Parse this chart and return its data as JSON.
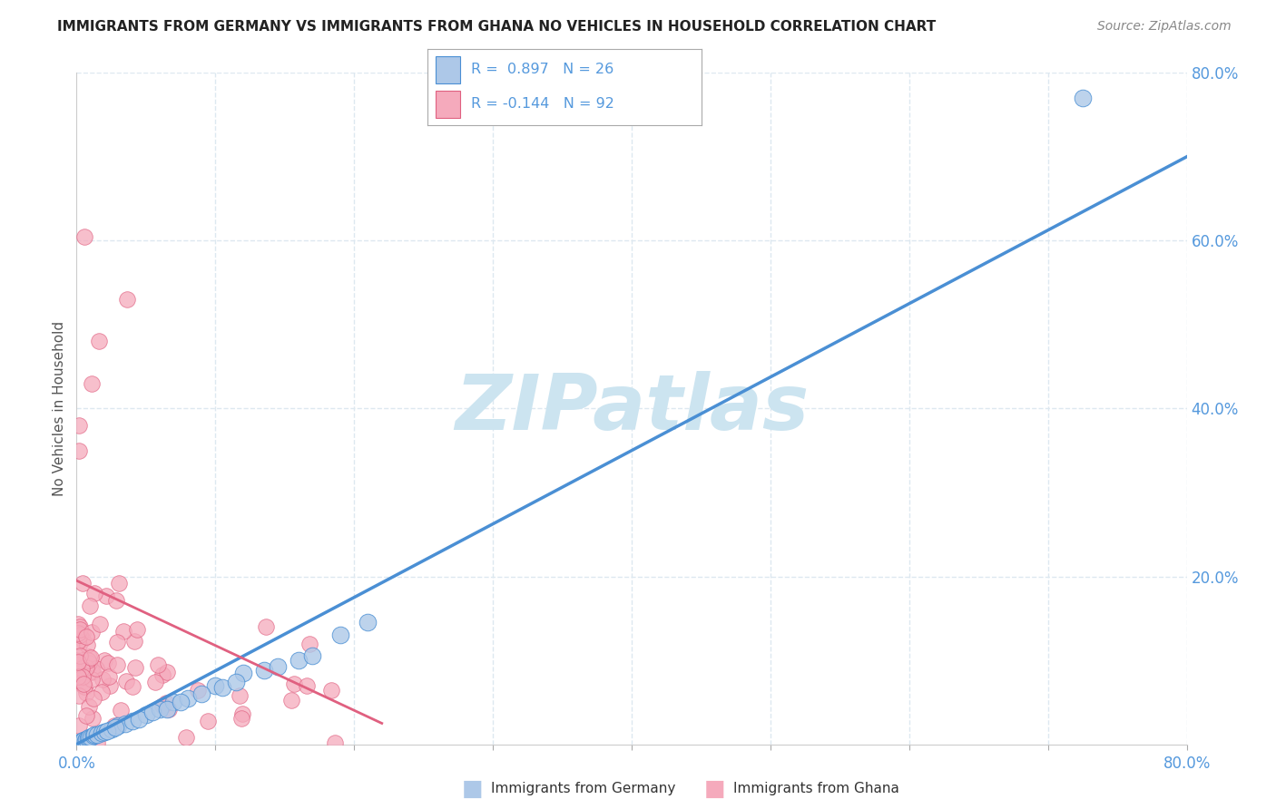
{
  "title": "IMMIGRANTS FROM GERMANY VS IMMIGRANTS FROM GHANA NO VEHICLES IN HOUSEHOLD CORRELATION CHART",
  "source": "Source: ZipAtlas.com",
  "ylabel": "No Vehicles in Household",
  "legend1_r": "0.897",
  "legend1_n": "26",
  "legend2_r": "-0.144",
  "legend2_n": "92",
  "color_germany": "#adc8e8",
  "color_ghana": "#f5aabc",
  "line_germany": "#4a8fd4",
  "line_ghana": "#e06080",
  "watermark": "ZIPatlas",
  "watermark_color": "#cce4f0",
  "xmin": 0.0,
  "xmax": 0.8,
  "ymin": 0.0,
  "ymax": 0.8,
  "grid_color": "#dde8f0",
  "bg_color": "#ffffff",
  "title_color": "#222222",
  "source_color": "#888888",
  "tick_color": "#5599dd"
}
